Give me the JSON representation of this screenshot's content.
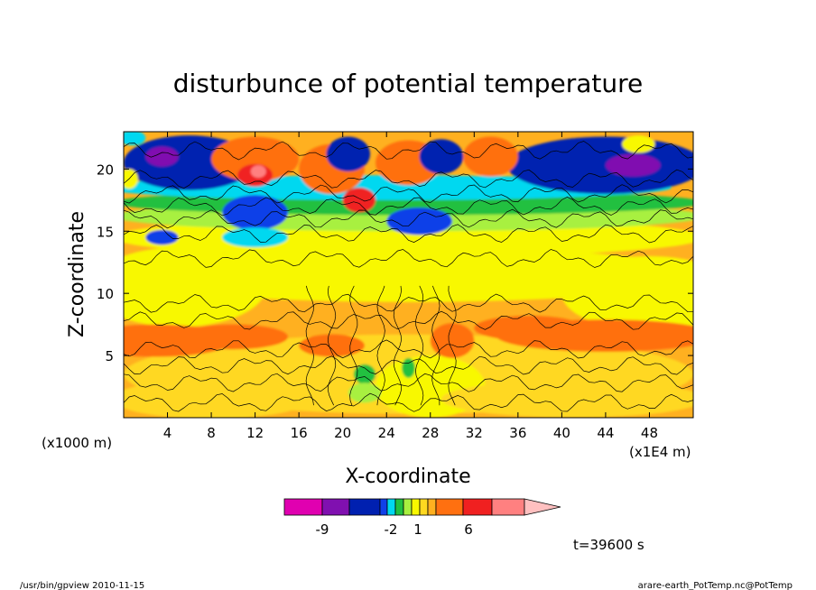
{
  "chart_data": {
    "type": "heatmap",
    "title": "disturbunce of potential temperature",
    "xlabel": "X-coordinate",
    "ylabel": "Z-coordinate",
    "x_unit_left": "(x1000 m)",
    "x_unit_right": "(x1E4 m)",
    "time_label": "t=39600 s",
    "xlim": [
      0,
      52
    ],
    "ylim": [
      0,
      23
    ],
    "xticks": [
      4,
      8,
      12,
      16,
      20,
      24,
      28,
      32,
      36,
      40,
      44,
      48
    ],
    "yticks": [
      5,
      10,
      15,
      20
    ],
    "colorbar": {
      "labels": [
        "-9",
        "-2",
        "1",
        "6"
      ],
      "colors": [
        "#e000b0",
        "#8010b0",
        "#0020b0",
        "#1040e8",
        "#00d8f0",
        "#20c040",
        "#a8f040",
        "#f8f800",
        "#ffd820",
        "#ffb020",
        "#ff7010",
        "#f02020",
        "#ff8080",
        "#ffc0c0"
      ]
    },
    "field_colors": {
      "magenta": "#e000b0",
      "purple": "#8010b0",
      "navy": "#0020b0",
      "blue": "#1040e8",
      "cyan": "#00d8f0",
      "green": "#20c040",
      "lime": "#a8f040",
      "yellow": "#f8f800",
      "gold": "#ffd820",
      "amber": "#ffb020",
      "orange": "#ff7010",
      "red": "#f02020",
      "pink": "#ff8080"
    }
  },
  "footer": {
    "left": "/usr/bin/gpview   2010-11-15",
    "right": "arare-earth_PotTemp.nc@PotTemp"
  }
}
